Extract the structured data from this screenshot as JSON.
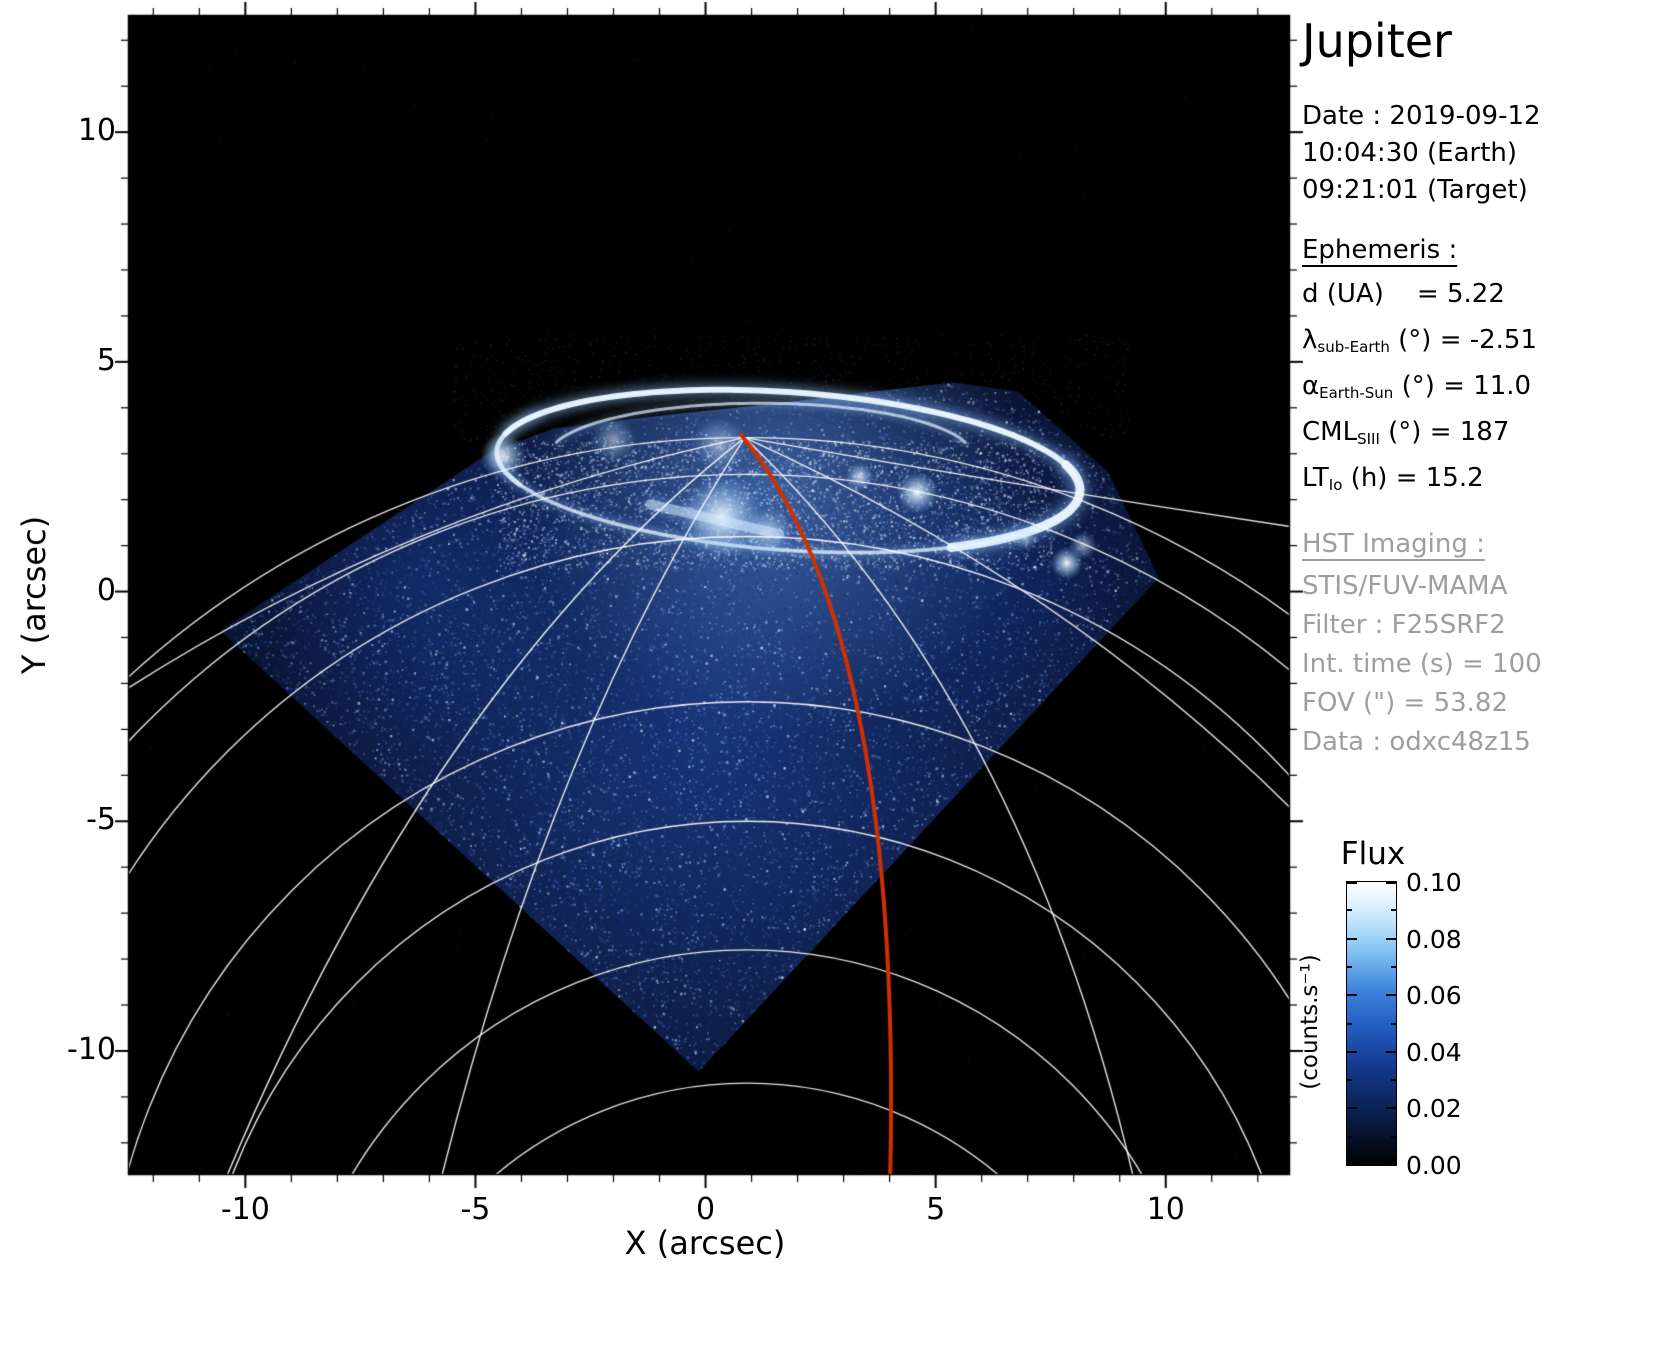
{
  "panel": {
    "title": "Jupiter",
    "date_lines": [
      "Date : 2019-09-12",
      "10:04:30 (Earth)",
      "09:21:01 (Target)"
    ],
    "ephemeris_header": "Ephemeris :",
    "ephemeris_rows": [
      {
        "sym": "d (UA)",
        "sub": "",
        "rest": "    = 5.22"
      },
      {
        "sym": "λ",
        "sub": "sub-Earth",
        "rest": " (°) = -2.51"
      },
      {
        "sym": "α",
        "sub": "Earth-Sun",
        "rest": " (°) = 11.0"
      },
      {
        "sym": "CML",
        "sub": "SIII",
        "rest": " (°) = 187"
      },
      {
        "sym": "LT",
        "sub": "Io",
        "rest": " (h) = 15.2"
      }
    ],
    "hst_header": "HST Imaging :",
    "hst_rows": [
      "STIS/FUV-MAMA",
      "Filter : F25SRF2",
      "Int. time (s) = 100",
      "FOV (\") = 53.82",
      "Data : odxc48z15"
    ],
    "gray_color": "#9e9e9e"
  },
  "chart_data": {
    "type": "heatmap",
    "description": "HST far-UV image of Jupiter's northern aurora (blue flux map) with planetary latitude/longitude graticule in white and a highlighted meridian in red",
    "xlabel": "X (arcsec)",
    "ylabel": "Y (arcsec)",
    "xlim": [
      -12.55,
      12.7
    ],
    "ylim": [
      -12.7,
      12.55
    ],
    "x_ticks": [
      -10,
      -5,
      0,
      5,
      10
    ],
    "y_ticks": [
      10,
      5,
      0,
      -5,
      -10
    ],
    "minor_tick_step": 1,
    "colorbar": {
      "title": "Flux",
      "unit": "(counts.s⁻¹)",
      "tick_labels": [
        "0.10",
        "0.08",
        "0.06",
        "0.04",
        "0.02",
        "0.00"
      ],
      "vmin": 0.0,
      "vmax": 0.1,
      "colors": [
        "#000000",
        "#071637",
        "#0d2a68",
        "#173f97",
        "#2560c4",
        "#3f86dd",
        "#7fc0f2",
        "#c8e9fc",
        "#ffffff"
      ]
    },
    "detector_region_polygon": [
      [
        -0.15,
        -10.45
      ],
      [
        -10.55,
        -0.85
      ],
      [
        -4.65,
        3.05
      ],
      [
        -3.3,
        3.55
      ],
      [
        -0.8,
        3.85
      ],
      [
        1.6,
        4.1
      ],
      [
        3.6,
        4.35
      ],
      [
        5.4,
        4.55
      ],
      [
        6.8,
        4.35
      ],
      [
        8.75,
        2.6
      ],
      [
        9.85,
        0.3
      ]
    ],
    "noise": {
      "speckle_count": 26000,
      "palette": [
        "#dcecff",
        "#9fc8ff",
        "#5d8fe8",
        "#2b57b8",
        "#123078"
      ],
      "base_color": "#0a1331"
    },
    "aurora": {
      "oval_center": [
        1.8,
        2.62
      ],
      "oval_rx": 6.35,
      "oval_ry": 1.72,
      "oval_rot_deg": -4,
      "ring_arcs": [
        {
          "t0": -190,
          "t1": 170,
          "w": 4,
          "a": 0.5,
          "blur": 10
        },
        {
          "t0": 15,
          "t1": 168,
          "w": 6,
          "a": 0.95,
          "blur": 14
        },
        {
          "t0": -55,
          "t1": 20,
          "w": 9,
          "a": 0.95,
          "blur": 16
        },
        {
          "t0": 150,
          "t1": 205,
          "w": 5,
          "a": 0.8,
          "blur": 12
        },
        {
          "t0": 205,
          "t1": 330,
          "w": 3,
          "a": 0.5,
          "blur": 8
        }
      ],
      "inner_arc": {
        "center": [
          1.2,
          2.95
        ],
        "rx": 4.6,
        "ry": 1.15,
        "t0": 15,
        "t1": 165,
        "w": 3,
        "a": 0.7
      },
      "spots": [
        [
          0.35,
          1.62,
          0.9,
          0.95
        ],
        [
          1.35,
          1.3,
          0.55,
          0.6
        ],
        [
          4.6,
          2.15,
          0.45,
          0.95
        ],
        [
          3.35,
          2.5,
          0.3,
          0.8
        ],
        [
          -4.4,
          2.95,
          0.5,
          0.85
        ],
        [
          7.85,
          0.62,
          0.35,
          0.95
        ],
        [
          8.2,
          1.0,
          0.3,
          0.6
        ],
        [
          6.95,
          1.15,
          0.25,
          0.5
        ],
        [
          -2.0,
          3.3,
          0.5,
          0.5
        ],
        [
          0.3,
          3.2,
          0.6,
          0.5
        ]
      ],
      "streaks": [
        {
          "p": [
            [
              -1.2,
              1.9
            ],
            [
              1.6,
              1.25
            ]
          ],
          "w": 10,
          "a": 0.5
        }
      ]
    },
    "graticule": {
      "color": "#ffffff",
      "width": 1.4,
      "pole": [
        0.85,
        3.35
      ],
      "lat_center_x": 0.9,
      "latitude_arcs": [
        {
          "apex": 3.35,
          "r": 20
        },
        {
          "apex": 2.55,
          "r": 18.5
        },
        {
          "apex": 1.2,
          "r": 16
        },
        {
          "apex": -2.4,
          "r": 14
        },
        {
          "apex": -5.0,
          "r": 12
        },
        {
          "apex": -7.8,
          "r": 10
        },
        {
          "apex": -10.7,
          "r": 8.5
        }
      ],
      "meridians": [
        {
          "cx": -6.5,
          "cy": 1.8,
          "ex": -12.7,
          "ey": -2.2
        },
        {
          "cx": -6.0,
          "cy": -2.0,
          "ex": -10.6,
          "ey": -13.2
        },
        {
          "cx": -3.4,
          "cy": -3.2,
          "ex": -5.85,
          "ey": -13.2
        },
        {
          "cx": 7.0,
          "cy": -2.5,
          "ex": 9.4,
          "ey": -13.2
        },
        {
          "cx": 7.8,
          "cy": 0.2,
          "ex": 12.8,
          "ey": -4.8
        },
        {
          "cx": 6.8,
          "cy": 2.3,
          "ex": 12.8,
          "ey": 1.4
        }
      ]
    },
    "red_meridian": {
      "start": [
        0.78,
        3.4
      ],
      "ctrl": [
        4.35,
        -0.9
      ],
      "end": [
        4.0,
        -13.2
      ],
      "color": "#d03000",
      "width": 4
    }
  }
}
